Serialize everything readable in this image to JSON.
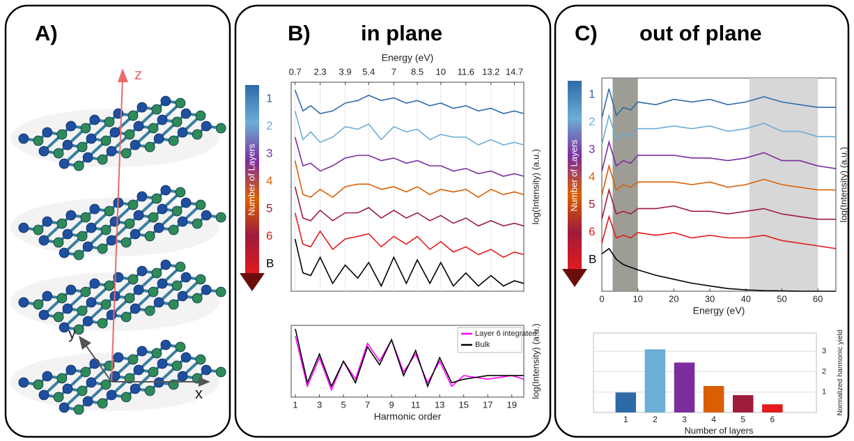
{
  "panels": [
    {
      "label": "A)",
      "axes": [
        "z",
        "y",
        "x"
      ]
    },
    {
      "label": "B)",
      "title": "in plane"
    },
    {
      "label": "C)",
      "title": "out of plane"
    }
  ],
  "chart_data": [
    {
      "type": "line",
      "x_label": "Energy (eV)",
      "x_axis_position": "top",
      "y_label": "log(Intensity) (a.u.)",
      "legend": "colorbar",
      "legend_title": "Number of Layers",
      "grid": true,
      "xlim": [
        0.45,
        15.3
      ],
      "xticks": [
        0.7,
        2.3,
        3.9,
        5.4,
        7,
        8.5,
        10,
        11.6,
        13.2,
        14.7
      ],
      "ylim": [
        0,
        8
      ],
      "x": [
        0.7,
        1.2,
        1.7,
        2.3,
        3.1,
        3.9,
        4.7,
        5.4,
        6.2,
        7,
        7.8,
        8.5,
        9.3,
        10,
        10.8,
        11.6,
        12.4,
        13.2,
        14,
        14.7,
        15.3
      ],
      "series": [
        {
          "name": "1",
          "color": "#2f6aa8",
          "values": [
            7.7,
            6.9,
            7.1,
            6.8,
            6.9,
            7.2,
            7.3,
            7.5,
            7.3,
            7.4,
            7.2,
            7.3,
            7.1,
            7.2,
            7.0,
            7.1,
            6.9,
            7.0,
            6.8,
            6.9,
            6.8
          ]
        },
        {
          "name": "2",
          "color": "#6baed6",
          "values": [
            6.9,
            5.8,
            6.1,
            5.7,
            5.9,
            6.3,
            6.2,
            6.4,
            5.8,
            6.3,
            6.1,
            6.2,
            5.8,
            6.0,
            5.9,
            5.9,
            5.6,
            5.8,
            5.6,
            5.7,
            5.6
          ]
        },
        {
          "name": "3",
          "color": "#7b2d9e",
          "values": [
            5.9,
            4.8,
            4.9,
            4.6,
            4.8,
            5.1,
            5.2,
            5.2,
            5.0,
            5.1,
            4.9,
            5.0,
            4.8,
            4.8,
            4.6,
            4.7,
            4.5,
            4.6,
            4.4,
            4.5,
            4.4
          ]
        },
        {
          "name": "4",
          "color": "#d95f02",
          "values": [
            5.0,
            3.7,
            3.6,
            3.9,
            3.6,
            4.0,
            4.1,
            4.1,
            3.9,
            4.0,
            3.8,
            4.0,
            3.7,
            3.9,
            3.8,
            3.9,
            3.6,
            3.9,
            3.7,
            3.8,
            3.7
          ]
        },
        {
          "name": "5",
          "color": "#9e1b3c",
          "values": [
            4.0,
            2.8,
            2.7,
            3.1,
            2.7,
            3.0,
            3.0,
            3.2,
            2.8,
            3.1,
            2.8,
            3.0,
            2.7,
            2.9,
            2.6,
            2.8,
            2.5,
            2.7,
            2.5,
            2.6,
            2.5
          ]
        },
        {
          "name": "6",
          "color": "#e41a1c",
          "values": [
            3.0,
            1.8,
            1.7,
            2.3,
            1.6,
            2.0,
            2.1,
            2.2,
            1.7,
            2.1,
            1.8,
            2.1,
            1.6,
            1.9,
            1.5,
            1.7,
            1.4,
            1.6,
            1.3,
            1.5,
            1.4
          ]
        },
        {
          "name": "B",
          "color": "#000000",
          "values": [
            2.0,
            0.7,
            0.6,
            1.3,
            0.3,
            1.0,
            0.5,
            1.1,
            0.2,
            1.3,
            0.3,
            1.2,
            0.3,
            1.1,
            0.2,
            0.7,
            0.2,
            0.6,
            0.2,
            0.4,
            0.3
          ]
        }
      ]
    },
    {
      "type": "line",
      "x_label": "Harmonic order",
      "x_axis_position": "bottom",
      "y_label": "log(Intensity) (a.u.)",
      "legend": "upper right",
      "grid": false,
      "xlim": [
        0.65,
        20
      ],
      "xticks": [
        1,
        3,
        5,
        7,
        9,
        11,
        13,
        15,
        17,
        19
      ],
      "ylim": [
        0,
        1
      ],
      "x": [
        1,
        2,
        3,
        4,
        5,
        6,
        7,
        8,
        9,
        10,
        11,
        12,
        13,
        14,
        15,
        17,
        19,
        20
      ],
      "series": [
        {
          "name": "Layer 6 integrated",
          "color": "#ff00ff",
          "values": [
            0.85,
            0.15,
            0.55,
            0.1,
            0.5,
            0.25,
            0.75,
            0.5,
            0.8,
            0.35,
            0.6,
            0.2,
            0.5,
            0.15,
            0.3,
            0.25,
            0.3,
            0.25
          ]
        },
        {
          "name": "Bulk",
          "color": "#000000",
          "values": [
            0.95,
            0.2,
            0.6,
            0.15,
            0.5,
            0.2,
            0.7,
            0.45,
            0.8,
            0.3,
            0.65,
            0.15,
            0.55,
            0.2,
            0.25,
            0.3,
            0.3,
            0.3
          ]
        }
      ]
    },
    {
      "type": "line",
      "x_label": "Energy (eV)",
      "x_axis_position": "bottom",
      "y_label": "log(Intensity) (a.u.)",
      "legend": "colorbar",
      "legend_title": "Number of Layers",
      "grid": false,
      "xlim": [
        0,
        65
      ],
      "xticks": [
        0,
        10,
        20,
        30,
        40,
        50,
        60
      ],
      "ylim": [
        0,
        8
      ],
      "shaded": [
        [
          3,
          10
        ],
        [
          41,
          60
        ]
      ],
      "x": [
        0,
        2,
        4,
        6,
        8,
        10,
        15,
        20,
        25,
        30,
        35,
        40,
        45,
        50,
        55,
        60,
        65
      ],
      "series": [
        {
          "name": "1",
          "color": "#2f6aa8",
          "values": [
            6.5,
            7.6,
            6.6,
            6.9,
            6.8,
            7.1,
            7.0,
            7.2,
            7.1,
            7.2,
            7.0,
            7.1,
            7.3,
            7.1,
            7.0,
            6.9,
            6.9
          ]
        },
        {
          "name": "2",
          "color": "#6baed6",
          "values": [
            5.5,
            6.6,
            5.7,
            5.9,
            5.8,
            6.1,
            6.1,
            6.2,
            6.1,
            6.2,
            6.0,
            6.1,
            6.3,
            6.0,
            6.0,
            5.8,
            5.8
          ]
        },
        {
          "name": "3",
          "color": "#7b2d9e",
          "values": [
            4.5,
            5.6,
            4.7,
            4.9,
            4.8,
            5.1,
            5.1,
            5.1,
            5.0,
            5.0,
            4.9,
            5.0,
            5.2,
            4.9,
            4.9,
            4.7,
            4.6
          ]
        },
        {
          "name": "4",
          "color": "#d95f02",
          "values": [
            3.6,
            4.7,
            3.8,
            4.0,
            3.9,
            4.1,
            4.1,
            4.1,
            4.0,
            4.1,
            3.9,
            4.0,
            4.2,
            4.0,
            3.9,
            3.8,
            3.8
          ]
        },
        {
          "name": "5",
          "color": "#9e1b3c",
          "values": [
            2.7,
            3.8,
            2.9,
            3.0,
            2.9,
            3.1,
            3.1,
            3.2,
            3.0,
            3.0,
            2.9,
            3.0,
            3.1,
            2.9,
            2.8,
            2.7,
            2.7
          ]
        },
        {
          "name": "6",
          "color": "#e41a1c",
          "values": [
            1.8,
            2.8,
            2.0,
            2.1,
            2.0,
            2.2,
            2.1,
            2.2,
            2.0,
            2.1,
            2.0,
            2.0,
            2.1,
            1.9,
            1.8,
            1.7,
            1.6
          ]
        },
        {
          "name": "B",
          "color": "#000000",
          "values": [
            1.4,
            1.6,
            1.2,
            1.0,
            0.9,
            0.8,
            0.6,
            0.45,
            0.3,
            0.2,
            0.1,
            0.05,
            0.02,
            0.01,
            0,
            0,
            0
          ]
        }
      ]
    },
    {
      "type": "bar",
      "x_label": "Number of layers",
      "y_label": "Normalized harmonic yield",
      "y_axis_position": "right",
      "grid": true,
      "categories": [
        "1",
        "2",
        "3",
        "4",
        "5",
        "6"
      ],
      "values": [
        0.98,
        3.1,
        2.45,
        1.3,
        0.85,
        0.4
      ],
      "colors": [
        "#2f6aa8",
        "#6baed6",
        "#7b2d9e",
        "#d95f02",
        "#9e1b3c",
        "#e41a1c"
      ],
      "ylim": [
        0,
        3.9
      ],
      "yticks": [
        1,
        2,
        3
      ]
    }
  ]
}
